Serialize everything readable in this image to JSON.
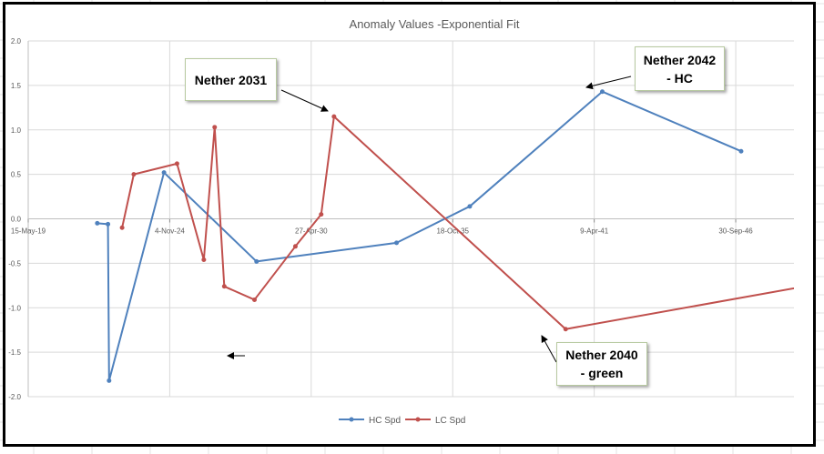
{
  "chart_data": {
    "type": "line",
    "title": "Anomaly Values -Exponential Fit",
    "xlabel": "",
    "ylabel": "",
    "ylim": [
      -2.0,
      2.0
    ],
    "y_ticks": [
      "2.0",
      "1.5",
      "1.0",
      "0.5",
      "0.0",
      "-0.5",
      "-1.0",
      "-1.5",
      "-2.0"
    ],
    "x_ticks": [
      "15-May-19",
      "4-Nov-24",
      "27-Apr-30",
      "18-Oct-35",
      "9-Apr-41",
      "30-Sep-46"
    ],
    "x_tick_dates": [
      "2019-05-15",
      "2024-11-04",
      "2030-04-27",
      "2035-10-18",
      "2041-04-09",
      "2046-09-30"
    ],
    "xlim": [
      "2019-05-15",
      "2048-12-31"
    ],
    "grid": true,
    "legend": "bottom-center",
    "series": [
      {
        "name": "HC Spd",
        "color": "#4f81bd",
        "points": [
          [
            "2022-01-15",
            -0.05
          ],
          [
            "2022-06-15",
            -0.06
          ],
          [
            "2022-07-01",
            -1.82
          ],
          [
            "2024-08-15",
            0.52
          ],
          [
            "2028-03-15",
            -0.48
          ],
          [
            "2033-08-15",
            -0.27
          ],
          [
            "2036-06-15",
            0.14
          ],
          [
            "2041-08-01",
            1.43
          ],
          [
            "2046-12-15",
            0.76
          ]
        ]
      },
      {
        "name": "LC Spd",
        "color": "#c0504d",
        "points": [
          [
            "2023-01-01",
            -0.1
          ],
          [
            "2023-06-15",
            0.5
          ],
          [
            "2025-02-15",
            0.62
          ],
          [
            "2026-03-01",
            -0.46
          ],
          [
            "2026-08-01",
            1.03
          ],
          [
            "2026-12-15",
            -0.76
          ],
          [
            "2028-02-15",
            -0.91
          ],
          [
            "2029-09-15",
            -0.31
          ],
          [
            "2030-09-15",
            0.05
          ],
          [
            "2031-03-15",
            1.15
          ],
          [
            "2040-03-01",
            -1.24
          ],
          [
            "2049-06-01",
            -0.76
          ]
        ]
      }
    ],
    "annotations": [
      {
        "text": "Nether 2031"
      },
      {
        "text": "Nether 2042\n- HC"
      },
      {
        "text": "Nether 2040\n- green"
      }
    ]
  }
}
